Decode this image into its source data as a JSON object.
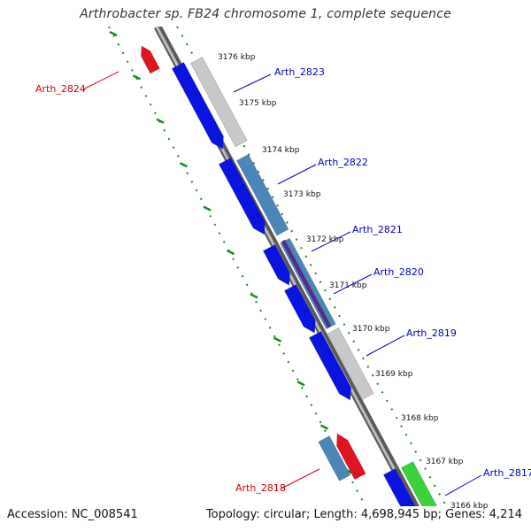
{
  "title": "Arthrobacter sp. FB24 chromosome 1, complete sequence",
  "footer": {
    "accession": "Accession: NC_008541",
    "summary": "Topology: circular; Length: 4,698,945 bp; Genes: 4,214"
  },
  "colors": {
    "backbone": "#8a8a8a",
    "tick_dash": "#1a8a1a",
    "forward_gene": "#0a14e0",
    "light_gray_gene": "#c8c8c8",
    "steel_blue_gene": "#4a86b8",
    "red_gene": "#e0141e",
    "green_gene": "#3cd23c",
    "label_blue": "#0000cc",
    "label_red": "#dd0000"
  },
  "scale_labels": [
    "3176 kbp",
    "3175 kbp",
    "3174 kbp",
    "3173 kbp",
    "3172 kbp",
    "3171 kbp",
    "3170 kbp",
    "3169 kbp",
    "3168 kbp",
    "3167 kbp",
    "3166 kbp"
  ],
  "gene_labels": [
    {
      "name": "Arth_2823",
      "color": "blue"
    },
    {
      "name": "Arth_2822",
      "color": "blue"
    },
    {
      "name": "Arth_2821",
      "color": "blue"
    },
    {
      "name": "Arth_2820",
      "color": "blue"
    },
    {
      "name": "Arth_2819",
      "color": "blue"
    },
    {
      "name": "Arth_2817",
      "color": "blue"
    },
    {
      "name": "Arth_2824",
      "color": "red"
    },
    {
      "name": "Arth_2818",
      "color": "red"
    }
  ]
}
